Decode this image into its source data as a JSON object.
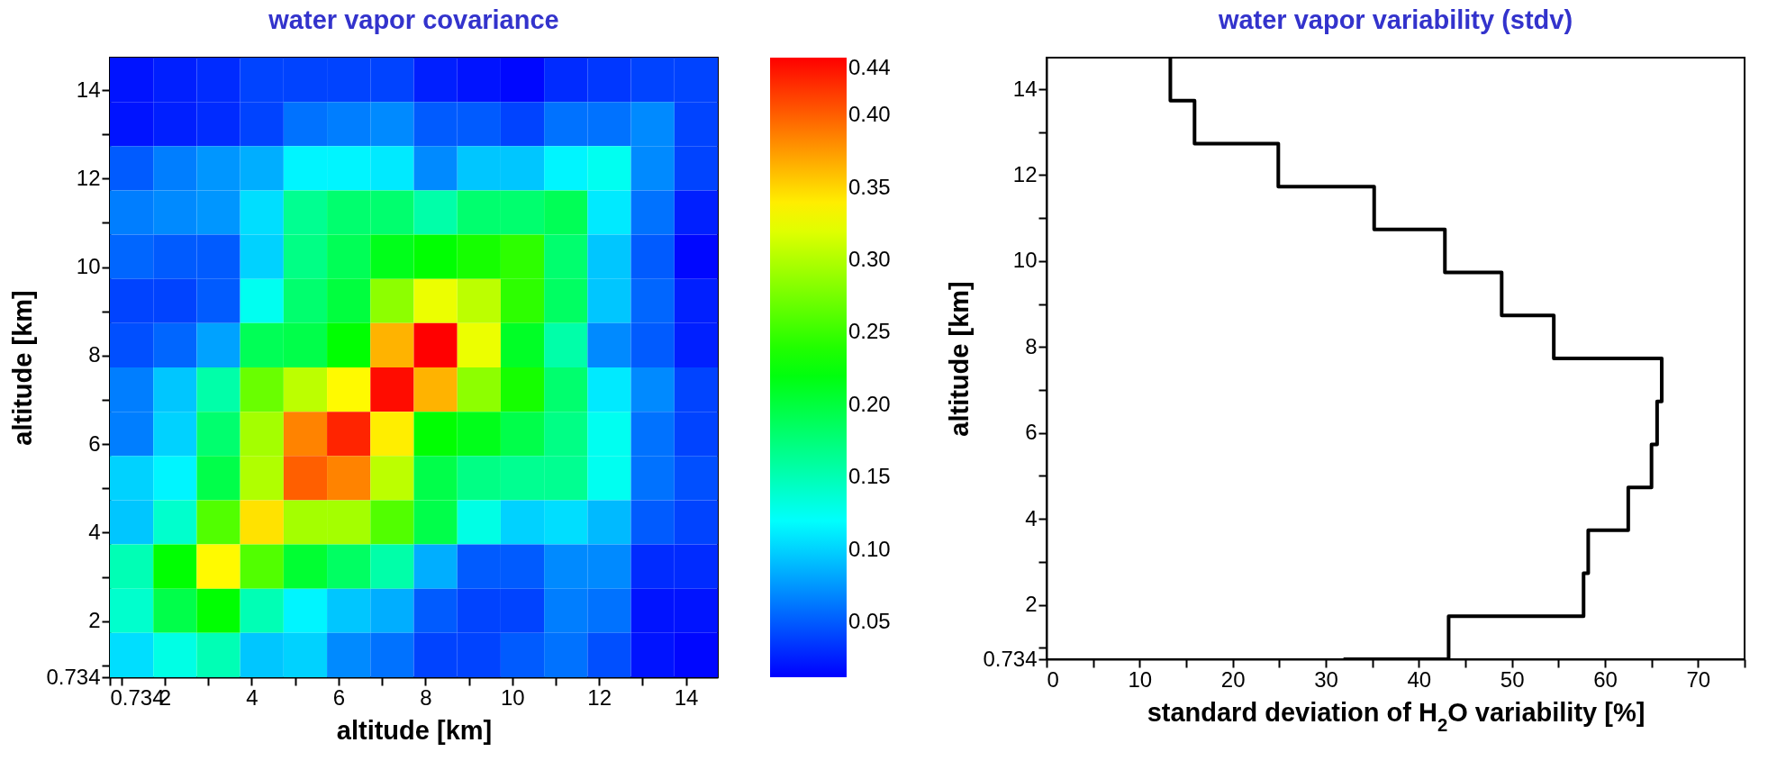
{
  "chart_data": [
    {
      "type": "heatmap",
      "title": "water vapor covariance",
      "xlabel": "altitude [km]",
      "ylabel": "altitude [km]",
      "x": [
        1.234,
        2.234,
        3.234,
        4.234,
        5.234,
        6.234,
        7.234,
        8.234,
        9.234,
        10.234,
        11.234,
        12.234,
        13.234,
        14.234
      ],
      "xlim": [
        0.734,
        14.734
      ],
      "ylim": [
        0.734,
        14.734
      ],
      "xticks": [
        0.734,
        {
          "value": 1,
          "label": null
        },
        2,
        {
          "value": 3,
          "label": null
        },
        4,
        {
          "value": 5,
          "label": null
        },
        6,
        {
          "value": 7,
          "label": null
        },
        8,
        {
          "value": 9,
          "label": null
        },
        10,
        {
          "value": 11,
          "label": null
        },
        12,
        {
          "value": 13,
          "label": null
        },
        14
      ],
      "yticks": [
        0.734,
        {
          "value": 1,
          "label": null
        },
        2,
        {
          "value": 3,
          "label": null
        },
        4,
        {
          "value": 5,
          "label": null
        },
        6,
        {
          "value": 7,
          "label": null
        },
        8,
        {
          "value": 9,
          "label": null
        },
        10,
        {
          "value": 11,
          "label": null
        },
        12,
        {
          "value": 13,
          "label": null
        },
        14
      ],
      "clim": [
        0.012,
        0.44
      ],
      "cticks": [
        0.05,
        {
          "value": 0.1,
          "label": "0.10"
        },
        0.15,
        {
          "value": 0.2,
          "label": "0.20"
        },
        0.25,
        {
          "value": 0.3,
          "label": "0.30"
        },
        0.35,
        {
          "value": 0.4,
          "label": "0.40"
        },
        0.44
      ],
      "cells": [
        [
          0.02,
          0.025,
          0.03,
          0.04,
          0.04,
          0.04,
          0.04,
          0.025,
          0.02,
          0.015,
          0.03,
          0.035,
          0.04,
          0.04
        ],
        [
          0.02,
          0.025,
          0.03,
          0.04,
          0.06,
          0.065,
          0.07,
          0.05,
          0.05,
          0.04,
          0.06,
          0.06,
          0.07,
          0.04
        ],
        [
          0.05,
          0.065,
          0.075,
          0.085,
          0.115,
          0.115,
          0.11,
          0.07,
          0.095,
          0.095,
          0.115,
          0.125,
          0.07,
          0.04
        ],
        [
          0.065,
          0.07,
          0.075,
          0.105,
          0.165,
          0.18,
          0.18,
          0.155,
          0.18,
          0.18,
          0.19,
          0.11,
          0.06,
          0.025
        ],
        [
          0.055,
          0.05,
          0.05,
          0.1,
          0.17,
          0.19,
          0.215,
          0.225,
          0.235,
          0.245,
          0.18,
          0.095,
          0.05,
          0.015
        ],
        [
          0.04,
          0.04,
          0.05,
          0.125,
          0.18,
          0.2,
          0.285,
          0.325,
          0.305,
          0.245,
          0.185,
          0.095,
          0.055,
          0.025
        ],
        [
          0.045,
          0.055,
          0.08,
          0.19,
          0.195,
          0.225,
          0.365,
          0.44,
          0.325,
          0.21,
          0.155,
          0.07,
          0.05,
          0.025
        ],
        [
          0.065,
          0.095,
          0.155,
          0.27,
          0.305,
          0.335,
          0.435,
          0.365,
          0.285,
          0.235,
          0.18,
          0.11,
          0.07,
          0.04
        ],
        [
          0.065,
          0.1,
          0.18,
          0.295,
          0.385,
          0.425,
          0.34,
          0.225,
          0.215,
          0.195,
          0.17,
          0.125,
          0.06,
          0.04
        ],
        [
          0.1,
          0.115,
          0.195,
          0.3,
          0.4,
          0.385,
          0.305,
          0.195,
          0.17,
          0.165,
          0.165,
          0.125,
          0.06,
          0.045
        ],
        [
          0.095,
          0.14,
          0.26,
          0.345,
          0.295,
          0.295,
          0.26,
          0.195,
          0.13,
          0.1,
          0.105,
          0.09,
          0.05,
          0.04
        ],
        [
          0.15,
          0.225,
          0.335,
          0.26,
          0.205,
          0.185,
          0.155,
          0.085,
          0.05,
          0.05,
          0.07,
          0.07,
          0.03,
          0.03
        ],
        [
          0.14,
          0.195,
          0.225,
          0.15,
          0.115,
          0.095,
          0.085,
          0.05,
          0.04,
          0.04,
          0.065,
          0.06,
          0.02,
          0.02
        ],
        [
          0.105,
          0.13,
          0.15,
          0.095,
          0.1,
          0.07,
          0.06,
          0.04,
          0.04,
          0.05,
          0.06,
          0.045,
          0.02,
          0.015
        ]
      ]
    },
    {
      "type": "step",
      "orientation": "horizontal",
      "title": "water vapor variability (stdv)",
      "xlabel": "standard deviation of H$_{2}$O variability [%]",
      "ylabel": "altitude [km]",
      "x": [
        14.734,
        13.734,
        12.734,
        11.734,
        10.734,
        9.734,
        8.734,
        7.734,
        6.734,
        5.734,
        4.734,
        3.734,
        2.734,
        1.734,
        0.734
      ],
      "series": [
        {
          "color": "#000000",
          "values": [
            13.3,
            15.9,
            24.9,
            35.2,
            42.8,
            48.9,
            54.5,
            66.1,
            65.6,
            65.0,
            62.5,
            58.2,
            57.7,
            43.2,
            31.9
          ]
        }
      ],
      "xlim": [
        0,
        75
      ],
      "ylim": [
        0.734,
        14.734
      ],
      "xticks": [
        0,
        {
          "value": 5,
          "label": null
        },
        10,
        {
          "value": 15,
          "label": null
        },
        20,
        {
          "value": 25,
          "label": null
        },
        30,
        {
          "value": 35,
          "label": null
        },
        40,
        {
          "value": 45,
          "label": null
        },
        50,
        {
          "value": 55,
          "label": null
        },
        60,
        {
          "value": 65,
          "label": null
        },
        70,
        {
          "value": 75,
          "label": null
        }
      ],
      "yticks": [
        0.734,
        {
          "value": 1,
          "label": null
        },
        2,
        {
          "value": 3,
          "label": null
        },
        4,
        {
          "value": 5,
          "label": null
        },
        6,
        {
          "value": 7,
          "label": null
        },
        8,
        {
          "value": 9,
          "label": null
        },
        10,
        {
          "value": 11,
          "label": null
        },
        12,
        {
          "value": 13,
          "label": null
        },
        14
      ]
    }
  ]
}
